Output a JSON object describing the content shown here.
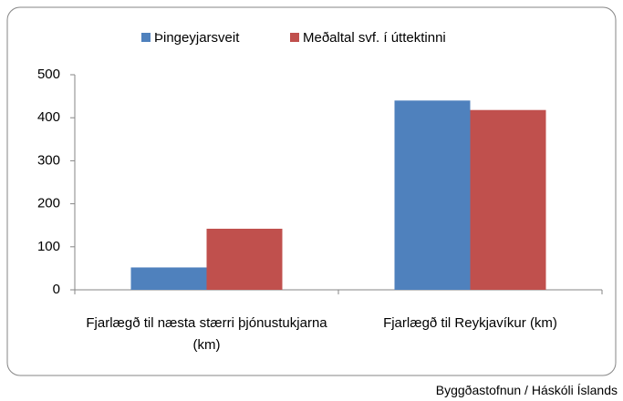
{
  "chart_data": {
    "type": "bar",
    "categories": [
      "Fjarlægð til næsta stærri þjónustukjarna (km)",
      "Fjarlægð til Reykjavíkur (km)"
    ],
    "series": [
      {
        "name": "Þingeyjarsveit",
        "color": "#4f81bd",
        "values": [
          52,
          440
        ]
      },
      {
        "name": "Meðaltal svf. í úttektinni",
        "color": "#c0504d",
        "values": [
          142,
          418
        ]
      }
    ],
    "ylim": [
      0,
      500
    ],
    "yticks": [
      0,
      100,
      200,
      300,
      400,
      500
    ],
    "grid": false,
    "legend": "top",
    "source": "Byggðastofnun / Háskóli Íslands"
  }
}
